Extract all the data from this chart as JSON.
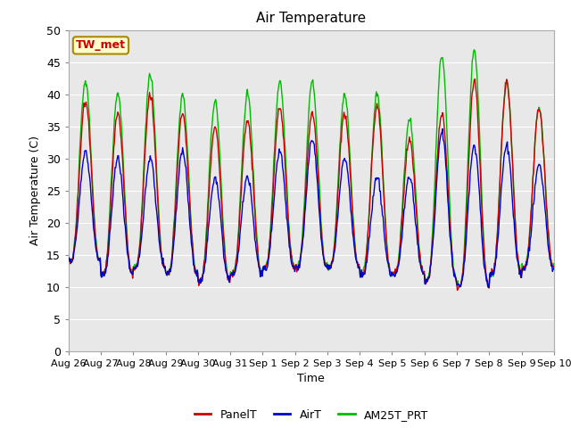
{
  "title": "Air Temperature",
  "ylabel": "Air Temperature (C)",
  "xlabel": "Time",
  "annotation_label": "TW_met",
  "legend_labels": [
    "PanelT",
    "AirT",
    "AM25T_PRT"
  ],
  "line_colors": [
    "#cc0000",
    "#0000cc",
    "#00bb00"
  ],
  "legend_colors": [
    "#cc0000",
    "#0000cc",
    "#00bb00"
  ],
  "ylim": [
    0,
    50
  ],
  "yticks": [
    0,
    5,
    10,
    15,
    20,
    25,
    30,
    35,
    40,
    45,
    50
  ],
  "plot_bg_color": "#e8e8e8",
  "tick_labels": [
    "Aug 26",
    "Aug 27",
    "Aug 28",
    "Aug 29",
    "Aug 30",
    "Aug 31",
    "Sep 1",
    "Sep 2",
    "Sep 3",
    "Sep 4",
    "Sep 5",
    "Sep 6",
    "Sep 7",
    "Sep 8",
    "Sep 9",
    "Sep 10"
  ],
  "num_days": 15,
  "title_fontsize": 11,
  "label_fontsize": 9,
  "tick_fontsize": 8
}
